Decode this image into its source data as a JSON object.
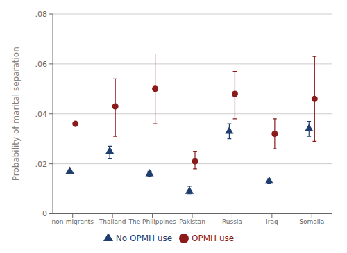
{
  "chart_data": {
    "type": "scatter",
    "ylabel": "Probability of marital separation",
    "categories": [
      "non-migrants",
      "Thailand",
      "The Philippines",
      "Pakistan",
      "Russia",
      "Iraq",
      "Somalia"
    ],
    "series": [
      {
        "name": "No OPMH use",
        "color": "#1f3e6e",
        "marker": "triangle",
        "values": [
          0.017,
          0.025,
          0.016,
          0.009,
          0.033,
          0.013,
          0.034
        ],
        "ci_low": [
          0.017,
          0.022,
          0.015,
          0.008,
          0.03,
          0.012,
          0.031
        ],
        "ci_high": [
          0.017,
          0.027,
          0.017,
          0.011,
          0.036,
          0.014,
          0.037
        ]
      },
      {
        "name": "OPMH use",
        "color": "#8b1a1a",
        "marker": "circle",
        "values": [
          0.036,
          0.043,
          0.05,
          0.021,
          0.048,
          0.032,
          0.046
        ],
        "ci_low": [
          0.036,
          0.031,
          0.036,
          0.018,
          0.038,
          0.026,
          0.029
        ],
        "ci_high": [
          0.036,
          0.054,
          0.064,
          0.025,
          0.057,
          0.038,
          0.063
        ]
      }
    ],
    "ylim": [
      0,
      0.08
    ],
    "yticks": [
      0,
      {
        "value": 0.02,
        "label": ".02"
      },
      {
        "value": 0.04,
        "label": ".04"
      },
      {
        "value": 0.06,
        "label": ".06"
      },
      {
        "value": 0.08,
        "label": ".08"
      }
    ],
    "grid": true,
    "legend": "bottom"
  }
}
